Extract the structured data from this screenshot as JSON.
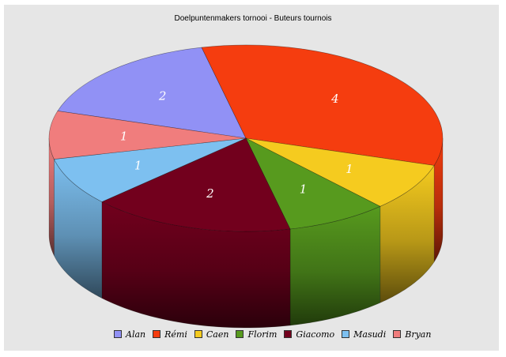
{
  "chart_data": {
    "type": "pie",
    "title": "Doelpuntenmakers tornooi - Buteurs tournois",
    "labels": [
      "Alan",
      "Rémi",
      "Caen",
      "Florim",
      "Giacomo",
      "Masudi",
      "Bryan"
    ],
    "values": [
      2,
      4,
      1,
      1,
      2,
      1,
      1
    ],
    "colors": [
      "#9191f5",
      "#f53d0f",
      "#f5cb1f",
      "#579a1e",
      "#72001d",
      "#7dc0f0",
      "#f07d7d"
    ],
    "value_labels": [
      "2",
      "4",
      "1",
      "1",
      "2",
      "1",
      "1"
    ],
    "legend_position": "bottom"
  }
}
